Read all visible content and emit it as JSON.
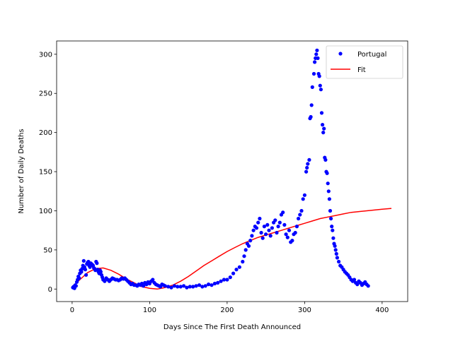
{
  "chart_data": {
    "type": "scatter",
    "title": "",
    "xlabel": "Days Since The First Death Announced",
    "ylabel": "Number of Daily Deaths",
    "xlim": [
      -20,
      433
    ],
    "ylim": [
      -16,
      317
    ],
    "x_ticks": [
      0,
      100,
      200,
      300,
      400
    ],
    "y_ticks": [
      0,
      50,
      100,
      150,
      200,
      250,
      300
    ],
    "grid": false,
    "legend": "top-right",
    "series": [
      {
        "name": "Portugal",
        "kind": "scatter",
        "color": "#0000ff",
        "x": [
          1,
          2,
          3,
          4,
          5,
          6,
          7,
          8,
          9,
          10,
          11,
          12,
          13,
          14,
          15,
          16,
          17,
          18,
          19,
          20,
          21,
          22,
          23,
          24,
          25,
          26,
          27,
          28,
          29,
          30,
          31,
          32,
          33,
          34,
          35,
          36,
          37,
          38,
          39,
          40,
          42,
          44,
          46,
          48,
          50,
          52,
          54,
          56,
          58,
          60,
          62,
          64,
          66,
          68,
          70,
          72,
          74,
          76,
          78,
          80,
          82,
          84,
          86,
          88,
          90,
          92,
          94,
          96,
          98,
          100,
          102,
          104,
          106,
          108,
          110,
          112,
          114,
          116,
          118,
          120,
          124,
          128,
          132,
          136,
          140,
          144,
          148,
          152,
          156,
          160,
          164,
          168,
          172,
          176,
          180,
          184,
          188,
          192,
          196,
          200,
          204,
          208,
          212,
          216,
          220,
          222,
          224,
          226,
          228,
          230,
          232,
          234,
          236,
          238,
          240,
          242,
          244,
          246,
          248,
          250,
          252,
          254,
          256,
          258,
          260,
          262,
          264,
          266,
          268,
          270,
          272,
          274,
          276,
          278,
          280,
          282,
          284,
          286,
          288,
          290,
          292,
          294,
          296,
          298,
          300,
          302,
          303,
          304,
          306,
          307,
          308,
          309,
          310,
          312,
          313,
          314,
          315,
          316,
          317,
          318,
          319,
          320,
          321,
          322,
          323,
          324,
          325,
          326,
          327,
          328,
          329,
          330,
          331,
          332,
          333,
          334,
          335,
          336,
          337,
          338,
          339,
          340,
          341,
          342,
          344,
          346,
          348,
          350,
          352,
          354,
          356,
          358,
          360,
          362,
          364,
          366,
          368,
          370,
          372,
          374,
          376,
          378,
          380,
          382
        ],
        "y": [
          2,
          3,
          1,
          5,
          4,
          9,
          12,
          16,
          14,
          20,
          24,
          22,
          26,
          30,
          36,
          28,
          25,
          18,
          32,
          34,
          35,
          30,
          28,
          33,
          32,
          31,
          30,
          27,
          26,
          24,
          35,
          33,
          25,
          22,
          20,
          24,
          22,
          18,
          15,
          12,
          10,
          14,
          12,
          10,
          12,
          14,
          13,
          12,
          12,
          11,
          12,
          14,
          13,
          14,
          12,
          10,
          8,
          6,
          7,
          5,
          5,
          4,
          6,
          5,
          7,
          4,
          8,
          6,
          9,
          7,
          10,
          12,
          8,
          6,
          5,
          4,
          3,
          6,
          5,
          4,
          3,
          2,
          4,
          3,
          3,
          4,
          2,
          3,
          3,
          4,
          5,
          3,
          4,
          6,
          5,
          7,
          8,
          10,
          12,
          12,
          15,
          20,
          25,
          28,
          35,
          42,
          50,
          58,
          55,
          62,
          68,
          75,
          80,
          78,
          85,
          90,
          72,
          65,
          80,
          70,
          82,
          75,
          68,
          78,
          85,
          88,
          72,
          80,
          85,
          95,
          98,
          82,
          70,
          66,
          75,
          60,
          62,
          70,
          72,
          80,
          90,
          95,
          100,
          115,
          120,
          150,
          155,
          160,
          165,
          218,
          220,
          235,
          258,
          275,
          290,
          295,
          300,
          305,
          295,
          275,
          272,
          260,
          255,
          225,
          210,
          200,
          205,
          168,
          165,
          150,
          148,
          135,
          125,
          115,
          100,
          90,
          80,
          75,
          65,
          58,
          55,
          50,
          45,
          40,
          35,
          30,
          28,
          25,
          22,
          20,
          18,
          15,
          12,
          10,
          12,
          8,
          6,
          10,
          8,
          5,
          7,
          9,
          6,
          4
        ]
      },
      {
        "name": "Fit",
        "kind": "line",
        "color": "#ff0000",
        "x": [
          0,
          10,
          20,
          30,
          40,
          50,
          60,
          70,
          80,
          90,
          100,
          110,
          120,
          130,
          140,
          150,
          160,
          170,
          180,
          190,
          200,
          210,
          220,
          230,
          240,
          250,
          260,
          270,
          280,
          290,
          300,
          310,
          320,
          330,
          340,
          350,
          360,
          370,
          380,
          390,
          400,
          412
        ],
        "y": [
          2,
          12,
          21,
          26,
          27,
          24,
          19,
          13,
          8,
          3,
          1,
          0,
          2,
          5,
          10,
          16,
          23,
          30,
          36,
          42,
          48,
          53,
          58,
          62,
          66,
          69,
          72,
          75,
          78,
          81,
          84,
          87,
          90,
          92,
          94,
          96,
          98,
          99,
          100,
          101,
          102,
          103
        ]
      }
    ]
  }
}
